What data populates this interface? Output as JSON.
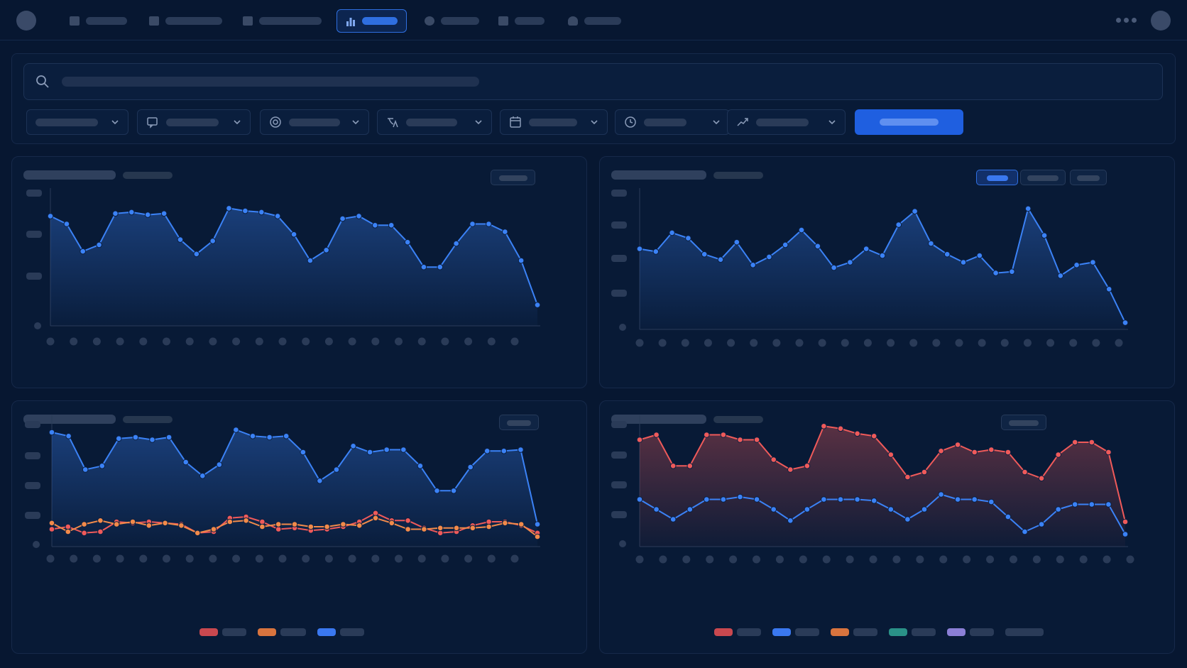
{
  "colors": {
    "background": "#071731",
    "accent": "#2f6fe0",
    "series_blue": "#3b82f6",
    "series_red": "#ef5a5a",
    "series_orange": "#f28a4a",
    "series_teal": "#2aa198",
    "series_purple": "#8b7fd6"
  },
  "nav": {
    "items": [
      {
        "icon": "grid-icon"
      },
      {
        "icon": "grid-icon"
      },
      {
        "icon": "book-icon"
      },
      {
        "icon": "bar-chart-icon",
        "active": true
      },
      {
        "icon": "search-icon"
      },
      {
        "icon": "grid-icon"
      },
      {
        "icon": "user-icon"
      }
    ]
  },
  "filters": {
    "search_icon": "search-icon",
    "dropdowns": [
      {
        "icon": ""
      },
      {
        "icon": "chat-icon"
      },
      {
        "icon": "globe-icon"
      },
      {
        "icon": "translate-icon"
      },
      {
        "icon": "calendar-icon"
      },
      {
        "icon": "clock-icon"
      },
      {
        "icon": "trend-icon"
      }
    ]
  },
  "chart_data": [
    {
      "type": "area",
      "grid": false,
      "ylim": [
        0,
        100
      ],
      "series": [
        {
          "color": "#3b82f6",
          "values": [
            84,
            78,
            57,
            62,
            86,
            87,
            85,
            86,
            66,
            55,
            65,
            90,
            88,
            87,
            84,
            70,
            50,
            58,
            82,
            84,
            77,
            77,
            64,
            45,
            45,
            63,
            78,
            78,
            72,
            50,
            16
          ]
        }
      ]
    },
    {
      "type": "area",
      "grid": false,
      "ylim": [
        0,
        100
      ],
      "series": [
        {
          "color": "#3b82f6",
          "values": [
            60,
            58,
            72,
            68,
            56,
            52,
            65,
            48,
            54,
            63,
            74,
            62,
            46,
            50,
            60,
            55,
            78,
            88,
            64,
            56,
            50,
            55,
            42,
            43,
            90,
            70,
            40,
            48,
            50,
            30,
            5
          ]
        }
      ]
    },
    {
      "type": "line",
      "grid": false,
      "ylim": [
        0,
        100
      ],
      "series": [
        {
          "color": "#3b82f6",
          "values": [
            92,
            89,
            62,
            65,
            87,
            88,
            86,
            88,
            68,
            57,
            66,
            94,
            89,
            88,
            89,
            76,
            53,
            62,
            81,
            76,
            78,
            78,
            65,
            45,
            45,
            64,
            77,
            77,
            78,
            18
          ]
        },
        {
          "color": "#ef5a5a",
          "values": [
            14,
            16,
            11,
            12,
            20,
            19,
            20,
            19,
            18,
            11,
            12,
            23,
            24,
            20,
            14,
            15,
            13,
            14,
            16,
            20,
            27,
            21,
            21,
            15,
            11,
            12,
            17,
            20,
            20,
            17,
            11
          ]
        },
        {
          "color": "#f28a4a",
          "values": [
            19,
            12,
            18,
            21,
            18,
            20,
            17,
            19,
            17,
            11,
            14,
            20,
            21,
            16,
            18,
            18,
            16,
            16,
            18,
            17,
            23,
            19,
            14,
            14,
            15,
            15,
            15,
            16,
            19,
            18,
            8
          ]
        }
      ]
    },
    {
      "type": "area",
      "grid": false,
      "ylim": [
        0,
        100
      ],
      "series": [
        {
          "color": "#ef5a5a",
          "values": [
            86,
            90,
            65,
            65,
            90,
            90,
            86,
            86,
            70,
            62,
            65,
            97,
            95,
            91,
            89,
            74,
            56,
            60,
            77,
            82,
            76,
            78,
            76,
            60,
            55,
            74,
            84,
            84,
            76,
            20
          ]
        },
        {
          "color": "#3b82f6",
          "values": [
            38,
            30,
            22,
            30,
            38,
            38,
            40,
            38,
            30,
            21,
            30,
            38,
            38,
            38,
            37,
            30,
            22,
            30,
            42,
            38,
            38,
            36,
            24,
            12,
            18,
            30,
            34,
            34,
            34,
            10
          ]
        }
      ]
    }
  ]
}
